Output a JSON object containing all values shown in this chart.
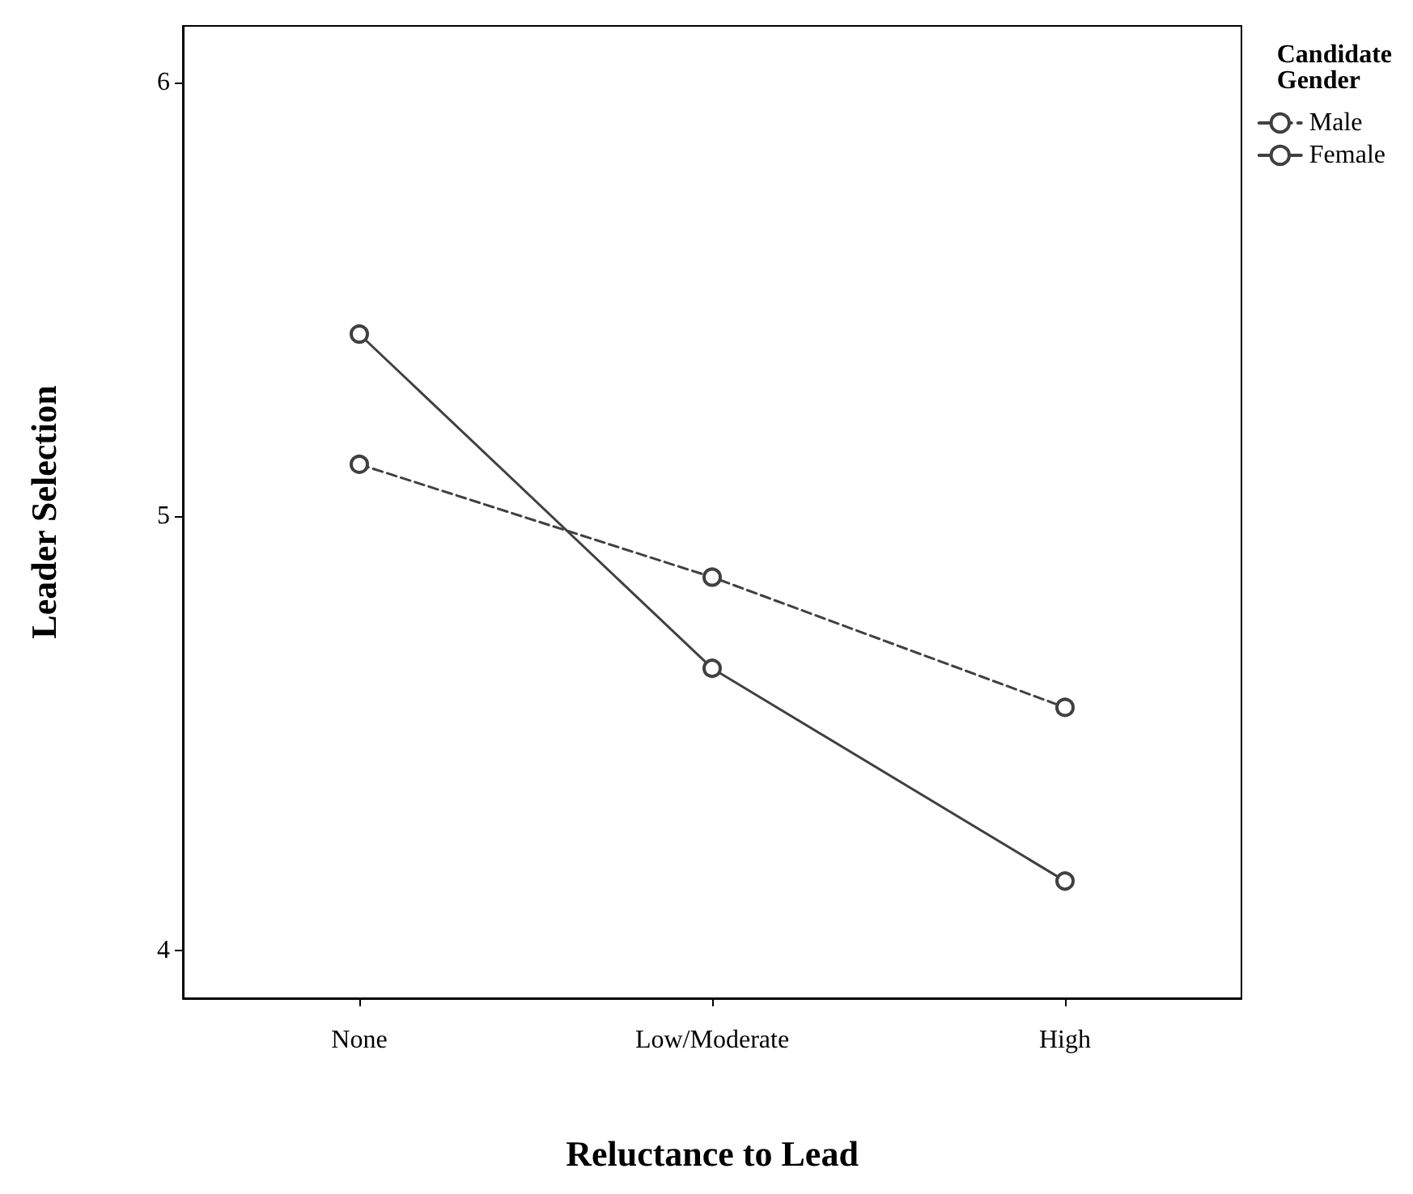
{
  "chart_data": {
    "type": "line",
    "xlabel": "Reluctance to Lead",
    "ylabel": "Leader Selection",
    "legend_title": "Candidate Gender",
    "categories": [
      "None",
      "Low/Moderate",
      "High"
    ],
    "series": [
      {
        "name": "Male",
        "color": "#404040",
        "values": [
          5.12,
          4.86,
          4.56
        ],
        "line_style": "dashed"
      },
      {
        "name": "Female",
        "color": "#404040",
        "values": [
          5.42,
          4.65,
          4.16
        ],
        "line_style": "solid"
      }
    ],
    "ylim": [
      3.89,
      6.13
    ],
    "yticks": [
      4,
      5,
      6
    ],
    "marker": "circle",
    "legend": "top right",
    "grid": false
  }
}
